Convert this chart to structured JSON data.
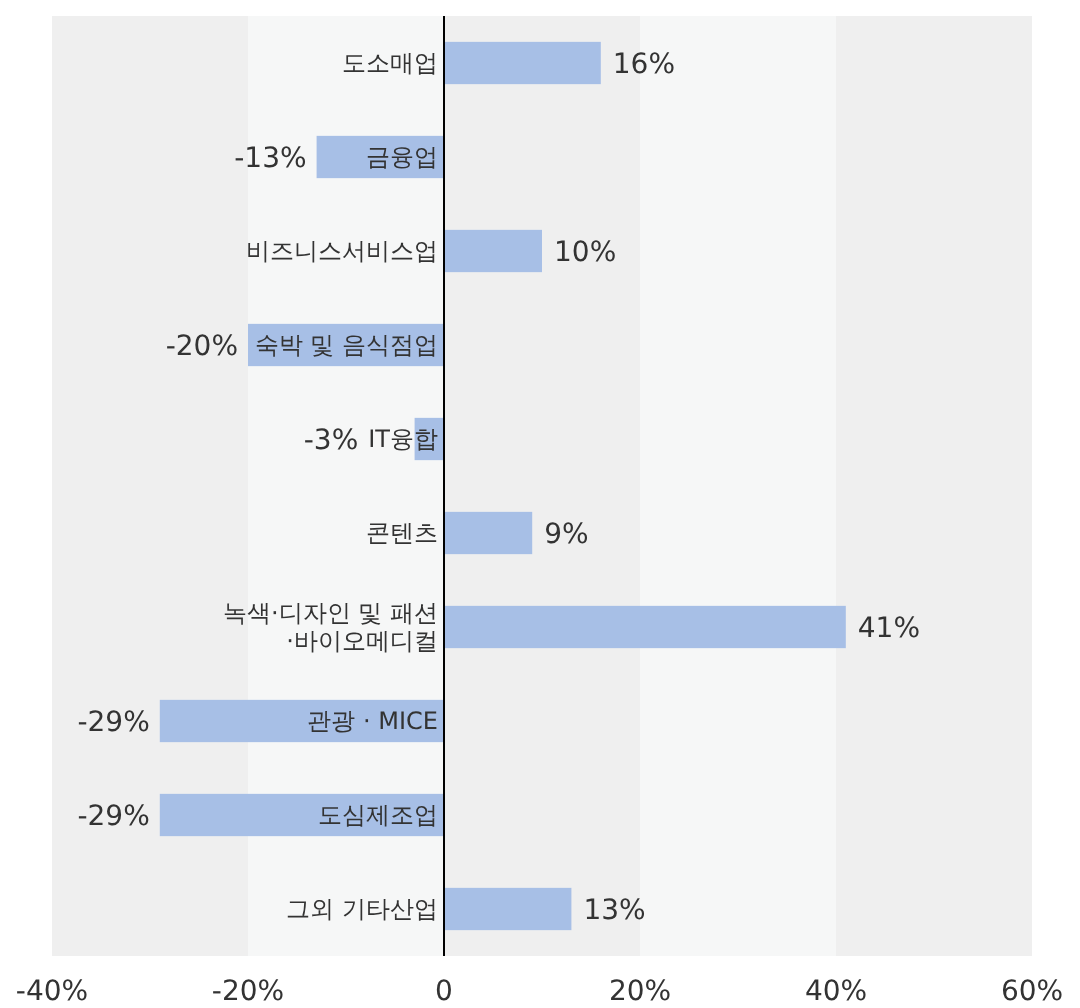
{
  "chart_data": {
    "type": "bar",
    "orientation": "horizontal",
    "categories": [
      "도소매업",
      "금융업",
      "비즈니스서비스업",
      "숙박 및 음식점업",
      "IT융합",
      "콘텐츠",
      "녹색·디자인 및 패션\n·바이오메디컬",
      "관광 · MICE",
      "도심제조업",
      "그외 기타산업"
    ],
    "values": [
      16,
      -13,
      10,
      -20,
      -3,
      9,
      41,
      -29,
      -29,
      13
    ],
    "value_labels": [
      "16%",
      "-13%",
      "10%",
      "-20%",
      "-3%",
      "9%",
      "41%",
      "-29%",
      "-29%",
      "13%"
    ],
    "color": "#a7bfe6",
    "xlim": [
      -40,
      60
    ],
    "xticks": [
      {
        "value": -40,
        "label": "-40%"
      },
      {
        "value": -20,
        "label": "-20%"
      },
      {
        "value": 0,
        "label": "0"
      },
      {
        "value": 20,
        "label": "20%"
      },
      {
        "value": 40,
        "label": "40%"
      },
      {
        "value": 60,
        "label": "60%"
      }
    ],
    "bands": [
      {
        "axis": "x",
        "from": -40,
        "to": -20,
        "color": "#efefef"
      },
      {
        "axis": "x",
        "from": -20,
        "to": 0,
        "color": "#f6f7f7"
      },
      {
        "axis": "x",
        "from": 0,
        "to": 20,
        "color": "#efefef"
      },
      {
        "axis": "x",
        "from": 20,
        "to": 40,
        "color": "#f6f7f7"
      },
      {
        "axis": "x",
        "from": 40,
        "to": 60,
        "color": "#efefef"
      }
    ],
    "grid": false
  }
}
